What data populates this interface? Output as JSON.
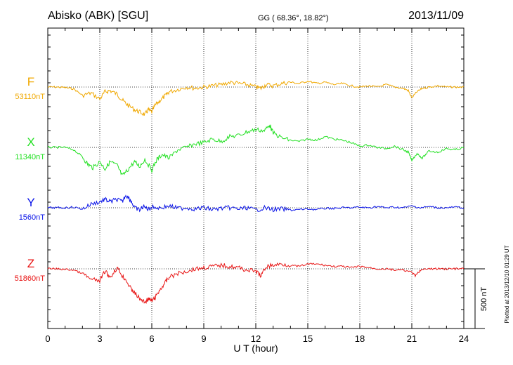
{
  "header": {
    "station": "Abisko (ABK)  [SGU]",
    "coords": "GG ( 68.36°,  18.82°)",
    "date": "2013/11/09"
  },
  "footer": {
    "plotted": "Plotted at 2013/12/10 01:29 UT"
  },
  "chart_data": {
    "type": "line",
    "title": "Abisko (ABK)  [SGU]",
    "xlabel": "U T (hour)",
    "xlim": [
      0,
      24
    ],
    "xticks": [
      0,
      3,
      6,
      9,
      12,
      15,
      18,
      21,
      24
    ],
    "grid": true,
    "scale_bar": {
      "label": "500 nT",
      "value": 500
    },
    "series": [
      {
        "name": "F",
        "baseline_label": "53110nT",
        "baseline": 53110,
        "color": "#f0a800",
        "x": [
          0,
          0.5,
          1,
          1.5,
          2,
          2.5,
          3,
          3.3,
          3.6,
          4,
          4.3,
          4.6,
          5,
          5.3,
          5.6,
          5.8,
          6,
          6.2,
          6.5,
          6.8,
          7,
          7.5,
          8,
          8.5,
          9,
          9.5,
          10,
          10.5,
          11,
          11.5,
          12,
          12.3,
          12.6,
          13,
          13.5,
          14,
          14.5,
          15,
          15.5,
          16,
          16.5,
          17,
          17.5,
          18,
          18.5,
          19,
          19.5,
          20,
          20.5,
          20.8,
          21,
          21.3,
          21.6,
          22,
          22.5,
          23,
          23.5,
          24
        ],
        "values": [
          53110,
          53110,
          53105,
          53095,
          53040,
          53060,
          53010,
          53070,
          53080,
          53050,
          53000,
          52960,
          52920,
          52900,
          52880,
          52920,
          52900,
          52960,
          53000,
          53040,
          53070,
          53090,
          53110,
          53100,
          53110,
          53120,
          53130,
          53150,
          53140,
          53130,
          53110,
          53100,
          53130,
          53120,
          53140,
          53150,
          53140,
          53160,
          53140,
          53150,
          53130,
          53140,
          53120,
          53110,
          53120,
          53110,
          53130,
          53110,
          53100,
          53080,
          53020,
          53070,
          53100,
          53110,
          53120,
          53110,
          53110,
          53110
        ]
      },
      {
        "name": "X",
        "baseline_label": "11340nT",
        "baseline": 11340,
        "color": "#22e022",
        "x": [
          0,
          0.5,
          1,
          1.5,
          2,
          2.3,
          2.6,
          3,
          3.3,
          3.6,
          4,
          4.3,
          4.6,
          5,
          5.3,
          5.6,
          6,
          6.3,
          6.6,
          7,
          7.5,
          8,
          8.5,
          9,
          9.5,
          10,
          10.5,
          11,
          11.5,
          12,
          12.5,
          12.8,
          13,
          13.5,
          14,
          14.5,
          15,
          15.5,
          16,
          16.5,
          17,
          17.5,
          18,
          18.5,
          19,
          19.5,
          20,
          20.5,
          20.8,
          21,
          21.3,
          21.6,
          22,
          22.5,
          23,
          23.5,
          24
        ],
        "values": [
          11340,
          11340,
          11340,
          11320,
          11260,
          11200,
          11170,
          11220,
          11160,
          11220,
          11190,
          11100,
          11150,
          11220,
          11180,
          11240,
          11150,
          11240,
          11280,
          11250,
          11320,
          11340,
          11370,
          11380,
          11410,
          11390,
          11430,
          11440,
          11470,
          11490,
          11480,
          11530,
          11460,
          11420,
          11400,
          11390,
          11410,
          11400,
          11430,
          11410,
          11400,
          11380,
          11350,
          11360,
          11340,
          11330,
          11350,
          11320,
          11300,
          11230,
          11290,
          11250,
          11310,
          11300,
          11330,
          11320,
          11340
        ]
      },
      {
        "name": "Y",
        "baseline_label": "1560nT",
        "baseline": 1560,
        "color": "#0a14e8",
        "x": [
          0,
          0.5,
          1,
          1.5,
          2,
          2.5,
          3,
          3.3,
          3.6,
          4,
          4.3,
          4.5,
          4.8,
          5,
          5.3,
          5.5,
          5.8,
          6,
          6.5,
          7,
          7.5,
          8,
          8.5,
          9,
          9.5,
          10,
          10.5,
          11,
          11.5,
          12,
          12.5,
          13,
          13.5,
          14,
          14.5,
          15,
          15.5,
          16,
          16.5,
          17,
          17.5,
          18,
          18.5,
          19,
          19.5,
          20,
          20.5,
          21,
          21.5,
          22,
          22.5,
          23,
          23.5,
          24
        ],
        "values": [
          1560,
          1560,
          1560,
          1565,
          1550,
          1590,
          1610,
          1630,
          1610,
          1630,
          1610,
          1670,
          1620,
          1560,
          1540,
          1570,
          1550,
          1565,
          1560,
          1575,
          1555,
          1560,
          1550,
          1560,
          1545,
          1555,
          1560,
          1550,
          1560,
          1540,
          1560,
          1545,
          1550,
          1540,
          1545,
          1550,
          1545,
          1555,
          1555,
          1560,
          1560,
          1565,
          1560,
          1570,
          1560,
          1565,
          1560,
          1575,
          1560,
          1570,
          1560,
          1560,
          1565,
          1560
        ]
      },
      {
        "name": "Z",
        "baseline_label": "51860nT",
        "baseline": 51860,
        "color": "#e81414",
        "x": [
          0,
          0.5,
          1,
          1.5,
          2,
          2.5,
          3,
          3.3,
          3.6,
          4,
          4.3,
          4.5,
          4.8,
          5,
          5.3,
          5.6,
          5.8,
          6,
          6.2,
          6.5,
          6.8,
          7,
          7.5,
          8,
          8.5,
          9,
          9.5,
          10,
          10.5,
          11,
          11.5,
          12,
          12.3,
          12.6,
          13,
          13.5,
          14,
          14.5,
          15,
          15.5,
          16,
          16.5,
          17,
          17.5,
          18,
          18.5,
          19,
          19.5,
          20,
          20.5,
          21,
          21.2,
          21.5,
          22,
          22.5,
          23,
          23.5,
          24
        ],
        "values": [
          51860,
          51860,
          51855,
          51850,
          51820,
          51770,
          51760,
          51840,
          51790,
          51870,
          51800,
          51770,
          51690,
          51660,
          51610,
          51580,
          51610,
          51590,
          51620,
          51690,
          51750,
          51790,
          51820,
          51840,
          51860,
          51870,
          51880,
          51890,
          51880,
          51870,
          51850,
          51840,
          51800,
          51880,
          51890,
          51900,
          51890,
          51880,
          51900,
          51900,
          51890,
          51880,
          51880,
          51870,
          51880,
          51870,
          51860,
          51860,
          51850,
          51850,
          51830,
          51800,
          51850,
          51860,
          51860,
          51860,
          51860,
          51860
        ]
      }
    ]
  }
}
